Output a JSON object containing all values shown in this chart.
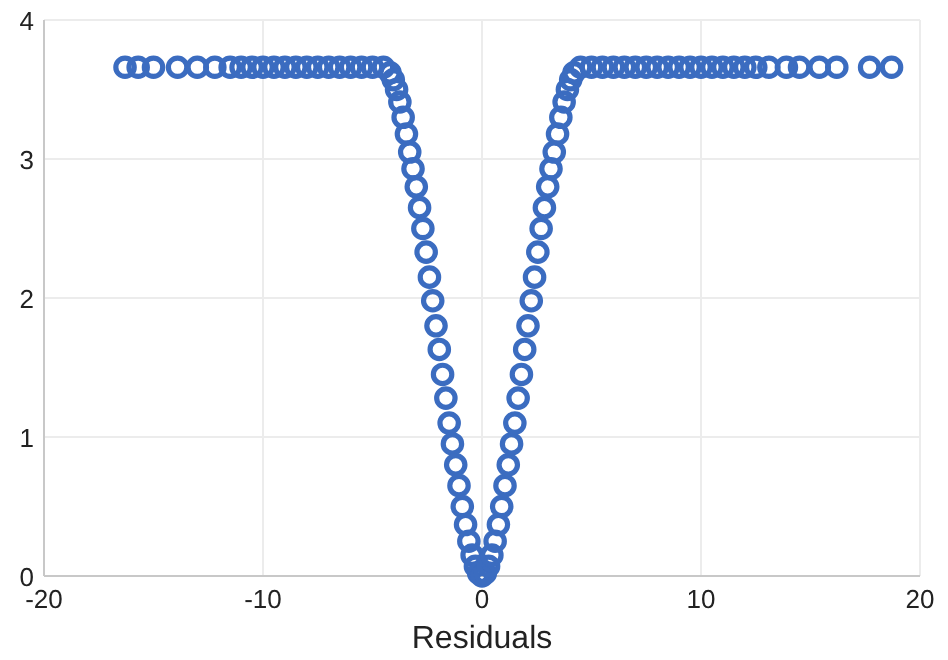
{
  "chart_data": {
    "type": "scatter",
    "xlabel": "Residuals",
    "xlim": [
      -20,
      20
    ],
    "ylim": [
      0,
      4
    ],
    "xticks": [
      -20,
      -10,
      0,
      10,
      20
    ],
    "yticks": [
      0,
      1,
      2,
      3,
      4
    ],
    "grid": true,
    "marker": "circle",
    "series": [
      {
        "color": "#3b6cc0",
        "x": [
          -16.3,
          -15.7,
          -15,
          -13.9,
          -13,
          -12.2,
          -11.5,
          -11,
          -10.5,
          -10,
          -9.5,
          -9,
          -8.5,
          -8,
          -7.5,
          -7,
          -6.5,
          -6,
          -5.5,
          -5,
          -4.5,
          -4.2,
          -4.05,
          -3.9,
          -3.75,
          -3.6,
          -3.45,
          -3.3,
          -3.15,
          -3,
          -2.85,
          -2.7,
          -2.55,
          -2.4,
          -2.25,
          -2.1,
          -1.95,
          -1.8,
          -1.65,
          -1.5,
          -1.35,
          -1.2,
          -1.05,
          -0.9,
          -0.75,
          -0.6,
          -0.45,
          -0.3,
          -0.15,
          0,
          0.15,
          0.3,
          0.45,
          0.6,
          0.75,
          0.9,
          1.05,
          1.2,
          1.35,
          1.5,
          1.65,
          1.8,
          1.95,
          2.1,
          2.25,
          2.4,
          2.55,
          2.7,
          2.85,
          3,
          3.15,
          3.3,
          3.45,
          3.6,
          3.75,
          3.9,
          4.05,
          4.2,
          4.5,
          5,
          5.5,
          6,
          6.5,
          7,
          7.5,
          8,
          8.5,
          9,
          9.5,
          10,
          10.5,
          11,
          11.5,
          12,
          12.5,
          13.1,
          13.9,
          14.5,
          15.4,
          16.2,
          17.7,
          18.7
        ],
        "values": [
          3.66,
          3.66,
          3.66,
          3.66,
          3.66,
          3.66,
          3.66,
          3.66,
          3.66,
          3.66,
          3.66,
          3.66,
          3.66,
          3.66,
          3.66,
          3.66,
          3.66,
          3.66,
          3.66,
          3.66,
          3.66,
          3.62,
          3.57,
          3.5,
          3.41,
          3.3,
          3.18,
          3.05,
          2.93,
          2.8,
          2.65,
          2.5,
          2.33,
          2.15,
          1.98,
          1.8,
          1.63,
          1.45,
          1.28,
          1.1,
          0.95,
          0.8,
          0.65,
          0.5,
          0.37,
          0.25,
          0.15,
          0.07,
          0.02,
          0,
          0.02,
          0.07,
          0.15,
          0.25,
          0.37,
          0.5,
          0.65,
          0.8,
          0.95,
          1.1,
          1.28,
          1.45,
          1.63,
          1.8,
          1.98,
          2.15,
          2.33,
          2.5,
          2.65,
          2.8,
          2.93,
          3.05,
          3.18,
          3.3,
          3.41,
          3.5,
          3.57,
          3.62,
          3.66,
          3.66,
          3.66,
          3.66,
          3.66,
          3.66,
          3.66,
          3.66,
          3.66,
          3.66,
          3.66,
          3.66,
          3.66,
          3.66,
          3.66,
          3.66,
          3.66,
          3.66,
          3.66,
          3.66,
          3.66,
          3.66,
          3.66,
          3.66
        ]
      }
    ]
  }
}
